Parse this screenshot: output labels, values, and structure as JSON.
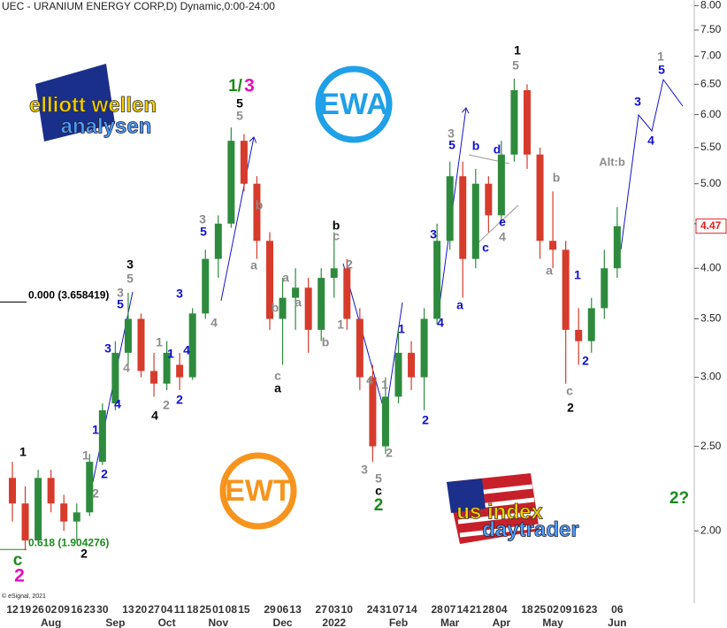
{
  "chart_data": {
    "type": "candlestick",
    "title": "UEC - URANIUM ENERGY CORP,D) Dynamic,0:00-24:00",
    "copyright": "© eSignal, 2021",
    "log_scale": true,
    "ylim": [
      1.66,
      8.12
    ],
    "yticks": [
      {
        "value": 2,
        "label": "2.00"
      },
      {
        "value": 2.5,
        "label": "2.50"
      },
      {
        "value": 3,
        "label": "3.00"
      },
      {
        "value": 3.5,
        "label": "3.50"
      },
      {
        "value": 4,
        "label": "4.00"
      },
      {
        "value": 4.5,
        "label": "4.50"
      },
      {
        "value": 5,
        "label": "5.00"
      },
      {
        "value": 5.5,
        "label": "5.50"
      },
      {
        "value": 6,
        "label": "6.00"
      },
      {
        "value": 6.5,
        "label": "6.50"
      },
      {
        "value": 7,
        "label": "7.00"
      },
      {
        "value": 7.5,
        "label": "7.50"
      },
      {
        "value": 8,
        "label": "8.00"
      }
    ],
    "categories": [
      "12",
      "19",
      "26",
      "02",
      "09",
      "16",
      "23",
      "30",
      null,
      "13",
      "20",
      "27",
      "04",
      "11",
      "18",
      "25",
      "01",
      "08",
      "15",
      null,
      "29",
      "06",
      "13",
      null,
      "27",
      "03",
      "10",
      null,
      "24",
      "31",
      "07",
      "14",
      null,
      "28",
      "07",
      "14",
      "21",
      "28",
      "04",
      null,
      "18",
      "25",
      "02",
      "09",
      "16",
      "23",
      null,
      "06"
    ],
    "month_labels": [
      null,
      null,
      null,
      "Aug",
      null,
      null,
      null,
      null,
      "Sep",
      null,
      null,
      null,
      "Oct",
      null,
      null,
      null,
      "Nov",
      null,
      null,
      null,
      null,
      "Dec",
      null,
      null,
      null,
      "2022",
      null,
      null,
      null,
      null,
      "Feb",
      null,
      null,
      null,
      "Mar",
      null,
      null,
      null,
      "Apr",
      null,
      null,
      null,
      "May",
      null,
      null,
      null,
      null,
      "Jun"
    ],
    "open": [
      2.3,
      2.15,
      1.95,
      2.3,
      2.15,
      2.05,
      2.1,
      2.4,
      2.8,
      3.2,
      3.5,
      3.05,
      2.95,
      3.1,
      3.0,
      3.55,
      4.1,
      4.5,
      5.6,
      5.0,
      4.3,
      3.5,
      3.7,
      3.8,
      3.4,
      3.9,
      4.0,
      3.5,
      3.0,
      2.5,
      2.85,
      3.2,
      3.0,
      3.5,
      4.3,
      5.1,
      4.1,
      5.0,
      4.6,
      5.4,
      6.4,
      5.4,
      4.3,
      4.2,
      3.4,
      3.3,
      3.6,
      4.0
    ],
    "high": [
      2.4,
      2.25,
      2.35,
      2.35,
      2.2,
      2.15,
      2.45,
      2.8,
      3.3,
      3.75,
      3.55,
      3.2,
      3.3,
      3.2,
      3.6,
      4.2,
      4.6,
      5.8,
      5.7,
      5.1,
      4.4,
      3.9,
      4.0,
      3.9,
      4.0,
      4.4,
      4.1,
      3.6,
      3.1,
      3.0,
      3.4,
      3.3,
      3.6,
      4.5,
      5.3,
      5.3,
      5.2,
      5.1,
      5.6,
      6.6,
      6.5,
      5.5,
      4.9,
      4.3,
      3.6,
      3.7,
      4.2,
      4.7
    ],
    "low": [
      2.05,
      1.9,
      1.93,
      2.1,
      2.0,
      1.95,
      2.08,
      2.38,
      2.75,
      3.1,
      3.0,
      2.85,
      2.9,
      2.9,
      2.98,
      3.5,
      3.9,
      4.45,
      4.9,
      4.1,
      3.4,
      3.1,
      3.4,
      3.2,
      3.3,
      3.7,
      3.4,
      2.9,
      2.4,
      2.45,
      2.8,
      2.9,
      2.75,
      3.45,
      4.2,
      3.7,
      4.0,
      4.4,
      4.5,
      5.3,
      5.2,
      4.1,
      4.0,
      2.95,
      3.1,
      3.2,
      3.5,
      3.9
    ],
    "close": [
      2.15,
      1.95,
      2.3,
      2.15,
      2.05,
      2.1,
      2.4,
      2.75,
      3.2,
      3.5,
      3.05,
      2.95,
      3.2,
      3.0,
      3.55,
      4.1,
      4.5,
      5.6,
      5.0,
      4.3,
      3.5,
      3.7,
      3.8,
      3.4,
      3.9,
      4.0,
      3.5,
      3.0,
      2.5,
      2.85,
      3.2,
      3.0,
      3.5,
      4.3,
      5.1,
      4.1,
      5.0,
      4.6,
      5.4,
      6.4,
      5.4,
      4.3,
      4.2,
      3.4,
      3.3,
      3.6,
      4.0,
      4.47
    ],
    "up_color": "#2e8b3d",
    "down_color": "#d63b2b",
    "last_price": 4.47,
    "last_price_color": "#e02020",
    "levels": [
      {
        "value": 3.658419,
        "label": "0.000 (3.658419)",
        "color": "#000000"
      },
      {
        "value": 1.904276,
        "label": "0.618 (1.904276)",
        "color": "#1a8a1a"
      }
    ],
    "annotations": [
      "1",
      "c",
      "2",
      "1",
      "2",
      "2",
      "2",
      "1",
      "3",
      "4",
      "4",
      "3",
      "5",
      "3",
      "5",
      "4",
      "2",
      "1",
      "1",
      "2",
      "4",
      "3",
      "3",
      "5",
      "4",
      "1/",
      "3",
      "5",
      "5",
      "b",
      "a",
      "a",
      "b",
      "c",
      "a",
      "b",
      "c",
      "a",
      "b",
      "2",
      "1",
      "4",
      "3",
      "5",
      "c",
      "2",
      "1",
      "2",
      "1",
      "2",
      "4",
      "3",
      "3",
      "5",
      "a",
      "b",
      "c",
      "d",
      "e",
      "4",
      "1",
      "5",
      "b",
      "a",
      "1",
      "c",
      "2",
      "2",
      "Alt:b",
      "3",
      "4",
      "1",
      "5",
      "2?"
    ]
  },
  "logos": {
    "ewa": "EWA",
    "ewt": "EWT",
    "eu_line1": "elliott wellen",
    "eu_line2": "analysen",
    "us_line1": "us index",
    "us_line2": "daytrader"
  }
}
